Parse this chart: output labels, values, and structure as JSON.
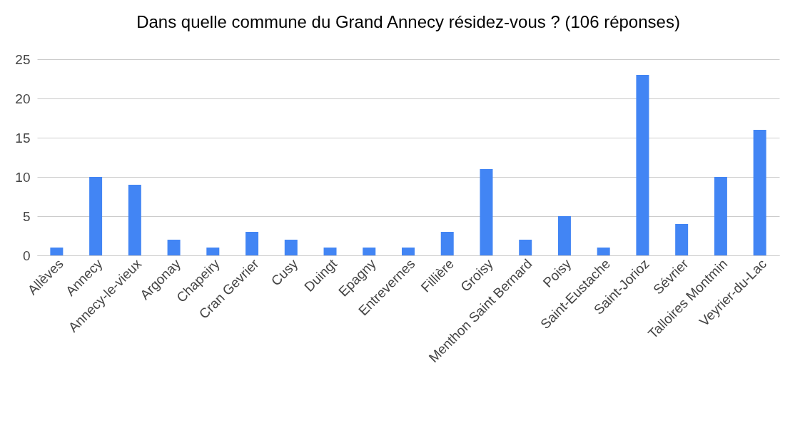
{
  "chart_data": {
    "type": "bar",
    "title": "Dans quelle commune du Grand Annecy résidez-vous ? (106 réponses)",
    "categories": [
      "Allèves",
      "Annecy",
      "Annecy-le-vieux",
      "Argonay",
      "Chapeiry",
      "Cran Gevrier",
      "Cusy",
      "Duingt",
      "Epagny",
      "Entrevernes",
      "Fillière",
      "Groisy",
      "Menthon Saint Bernard",
      "Poisy",
      "Saint-Eustache",
      "Saint-Jorioz",
      "Sévrier",
      "Talloires Montmin",
      "Veyrier-du-Lac"
    ],
    "values": [
      1,
      10,
      9,
      2,
      1,
      3,
      2,
      1,
      1,
      1,
      3,
      11,
      2,
      5,
      1,
      23,
      4,
      10,
      16
    ],
    "color": "#4285f4",
    "ylim": [
      0,
      25
    ],
    "yticks": [
      0,
      5,
      10,
      15,
      20,
      25
    ],
    "grid": "y"
  }
}
